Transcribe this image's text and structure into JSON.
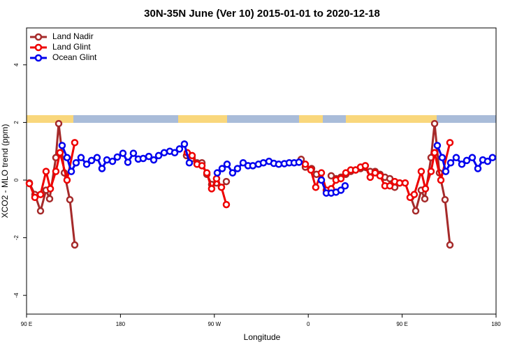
{
  "chart_data": {
    "type": "line",
    "title": "30N-35N June (Ver 10)   2015-01-01 to 2020-12-18",
    "x_label": "Longitude",
    "y_label": "XCO2 - MLO trend (ppm)",
    "xlim": [
      90,
      540
    ],
    "ylim": [
      -4.65,
      5.28
    ],
    "xticks": [
      {
        "value": 90,
        "label": "90 E"
      },
      180,
      {
        "value": 270,
        "label": "90 W"
      },
      {
        "value": 360,
        "label": "0"
      },
      {
        "value": 450,
        "label": "90 E"
      },
      {
        "value": 540,
        "label": "180"
      }
    ],
    "yticks": [
      -4,
      -2,
      0,
      2,
      4
    ],
    "legend": "top-left",
    "series": [
      {
        "name": "Land Nadir",
        "color": "#a52a2a",
        "x": [
          92.7,
          98.0,
          103.4,
          108.7,
          112.1,
          118.1,
          120.8,
          126.2,
          131.5,
          136.2,
          null,
          243.3,
          248.7,
          253.4,
          258.1,
          262.8,
          267.4,
          272.1,
          276.8,
          281.5,
          null,
          353.2,
          357.2,
          363.2,
          367.9,
          null,
          382.0,
          386.6,
          391.3,
          396.0,
          400.7,
          405.4,
          410.1,
          419.4,
          424.1,
          428.8,
          433.5,
          438.2,
          442.9,
          447.6,
          null,
          458.3,
          463.0,
          468.3,
          471.7,
          477.7,
          481.1,
          485.7,
          491.1,
          495.8
        ],
        "values": [
          -0.1,
          -0.5,
          -1.07,
          -0.35,
          -0.65,
          0.78,
          1.96,
          0.25,
          -0.68,
          -2.25,
          null,
          0.85,
          0.75,
          0.6,
          0.6,
          0.2,
          -0.15,
          -0.1,
          -0.25,
          -0.05,
          null,
          0.72,
          0.45,
          0.4,
          0.2,
          null,
          0.15,
          0.05,
          0.1,
          0.2,
          0.3,
          0.35,
          0.4,
          0.3,
          0.3,
          0.2,
          0.1,
          0.05,
          -0.25,
          -0.1,
          null,
          -0.6,
          -1.07,
          -0.35,
          -0.65,
          0.78,
          1.96,
          0.25,
          -0.68,
          -2.25
        ]
      },
      {
        "name": "Land Glint",
        "color": "#ee0000",
        "x": [
          92.7,
          98.0,
          103.4,
          108.7,
          112.8,
          118.1,
          122.1,
          128.8,
          136.2,
          null,
          244.0,
          248.7,
          253.4,
          258.1,
          262.8,
          267.4,
          272.1,
          276.8,
          281.5,
          null,
          357.2,
          362.5,
          367.2,
          372.6,
          377.3,
          382.0,
          386.6,
          391.3,
          396.0,
          400.7,
          405.4,
          410.1,
          414.7,
          419.4,
          424.1,
          428.8,
          433.5,
          438.2,
          442.9,
          447.6,
          452.9,
          457.6,
          461.6,
          468.3,
          472.3,
          477.7,
          481.1,
          487.1,
          495.8
        ],
        "values": [
          -0.12,
          -0.6,
          -0.5,
          0.3,
          -0.3,
          0.3,
          0.95,
          0.0,
          1.3,
          null,
          0.95,
          0.85,
          0.55,
          0.5,
          0.25,
          -0.3,
          0.05,
          -0.25,
          -0.85,
          null,
          0.55,
          0.35,
          -0.25,
          0.25,
          -0.35,
          -0.3,
          0.0,
          0.05,
          0.25,
          0.35,
          0.35,
          0.45,
          0.5,
          0.1,
          0.25,
          0.15,
          -0.2,
          -0.2,
          -0.05,
          -0.1,
          -0.1,
          -0.6,
          -0.5,
          0.3,
          -0.3,
          0.3,
          0.95,
          0.0,
          1.3
        ]
      },
      {
        "name": "Ocean Glint",
        "color": "#0000ee",
        "x": [
          124.1,
          128.8,
          132.9,
          137.5,
          142.2,
          147.6,
          152.3,
          157.6,
          162.3,
          167.0,
          172.4,
          177.0,
          182.4,
          187.1,
          192.4,
          197.1,
          201.8,
          207.2,
          211.9,
          216.6,
          221.9,
          227.3,
          232.0,
          236.6,
          241.3,
          246.0,
          null,
          272.8,
          277.5,
          282.2,
          287.5,
          292.2,
          297.6,
          302.3,
          306.9,
          312.3,
          317.0,
          322.4,
          327.0,
          331.7,
          337.1,
          341.8,
          346.5,
          351.1,
          null,
          372.6,
          377.3,
          382.0,
          386.6,
          391.3,
          395.3,
          null,
          483.7,
          488.4,
          491.8,
          496.5,
          501.8,
          507.2,
          511.9,
          517.2,
          522.6,
          527.3,
          531.9,
          536.6
        ],
        "values": [
          1.2,
          0.78,
          0.3,
          0.6,
          0.78,
          0.55,
          0.68,
          0.78,
          0.4,
          0.7,
          0.65,
          0.8,
          0.93,
          0.62,
          0.93,
          0.73,
          0.75,
          0.82,
          0.7,
          0.85,
          0.95,
          1.0,
          0.95,
          1.08,
          1.25,
          0.6,
          null,
          0.25,
          0.4,
          0.55,
          0.25,
          0.4,
          0.6,
          0.5,
          0.5,
          0.55,
          0.6,
          0.65,
          0.58,
          0.55,
          0.57,
          0.6,
          0.6,
          0.62,
          null,
          0.0,
          -0.45,
          -0.45,
          -0.42,
          -0.35,
          -0.2,
          null,
          1.2,
          0.78,
          0.3,
          0.6,
          0.78,
          0.55,
          0.68,
          0.78,
          0.4,
          0.7,
          0.65,
          0.78
        ]
      }
    ]
  }
}
